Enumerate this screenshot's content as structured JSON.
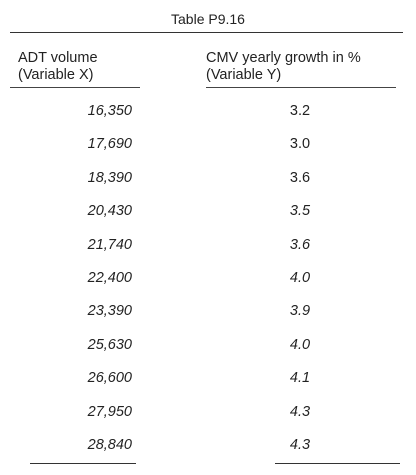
{
  "table": {
    "caption": "Table P9.16",
    "headers": {
      "x": [
        "ADT volume",
        "(Variable X)"
      ],
      "y": [
        "CMV yearly growth in %",
        "(Variable Y)"
      ]
    },
    "rows": [
      {
        "x": "16,350",
        "y": "3.2",
        "y_italic": false
      },
      {
        "x": "17,690",
        "y": "3.0",
        "y_italic": false
      },
      {
        "x": "18,390",
        "y": "3.6",
        "y_italic": false
      },
      {
        "x": "20,430",
        "y": "3.5",
        "y_italic": true
      },
      {
        "x": "21,740",
        "y": "3.6",
        "y_italic": true
      },
      {
        "x": "22,400",
        "y": "4.0",
        "y_italic": true
      },
      {
        "x": "23,390",
        "y": "3.9",
        "y_italic": true
      },
      {
        "x": "25,630",
        "y": "4.0",
        "y_italic": true
      },
      {
        "x": "26,600",
        "y": "4.1",
        "y_italic": true
      },
      {
        "x": "27,950",
        "y": "4.3",
        "y_italic": true
      },
      {
        "x": "28,840",
        "y": "4.3",
        "y_italic": true
      }
    ]
  }
}
